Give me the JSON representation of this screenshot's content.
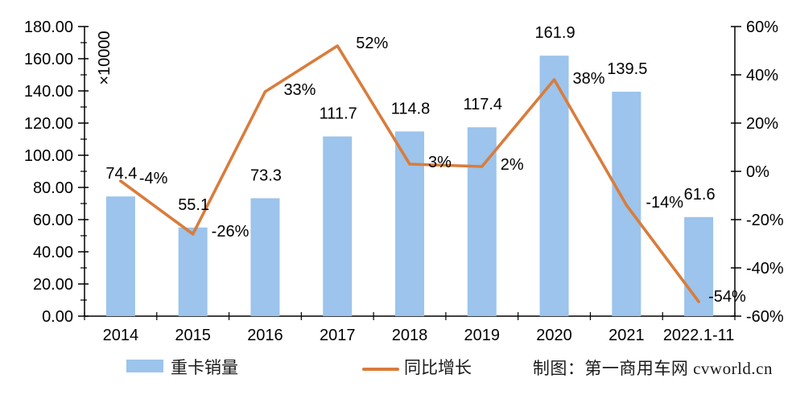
{
  "chart_data": {
    "type": "bar",
    "subtype": "bar-line-combo",
    "title": "",
    "categories": [
      "2014",
      "2015",
      "2016",
      "2017",
      "2018",
      "2019",
      "2020",
      "2021",
      "2022.1-11"
    ],
    "series": [
      {
        "name": "重卡销量",
        "type": "bar",
        "axis": "left",
        "color": "#9CC4EC",
        "values": [
          74.4,
          55.1,
          73.3,
          111.7,
          114.8,
          117.4,
          161.9,
          139.5,
          61.6
        ],
        "labels": [
          "74.4",
          "55.1",
          "73.3",
          "111.7",
          "114.8",
          "117.4",
          "161.9",
          "139.5",
          "61.6"
        ]
      },
      {
        "name": "同比增长",
        "type": "line",
        "axis": "right",
        "color": "#D97C3C",
        "values": [
          -4,
          -26,
          33,
          52,
          3,
          2,
          38,
          -14,
          -54
        ],
        "labels": [
          "-4%",
          "-26%",
          "33%",
          "52%",
          "3%",
          "2%",
          "38%",
          "-14%",
          "-54%"
        ]
      }
    ],
    "left_axis": {
      "title": "×10000",
      "min": 0,
      "max": 180,
      "step": 20,
      "tick_labels": [
        "180.00",
        "160.00",
        "140.00",
        "120.00",
        "100.00",
        "80.00",
        "60.00",
        "40.00",
        "20.00",
        "0.00"
      ]
    },
    "right_axis": {
      "min": -60,
      "max": 60,
      "step": 20,
      "tick_labels": [
        "60%",
        "40%",
        "20%",
        "0%",
        "-20%",
        "-40%",
        "-60%"
      ]
    },
    "grid": false,
    "legend_position": "bottom",
    "credit": "制图：第一商用车网 cvworld.cn",
    "colors": {
      "text": "#000000",
      "axis": "#000000",
      "background": "#FFFFFF"
    }
  }
}
